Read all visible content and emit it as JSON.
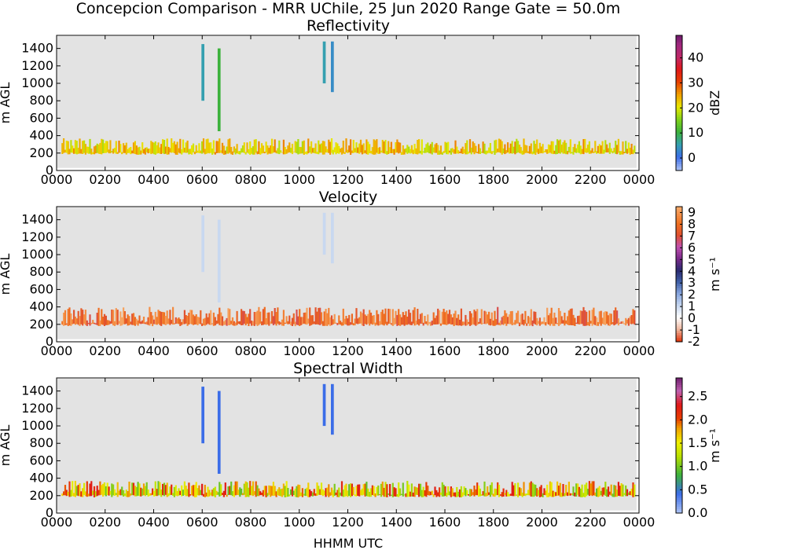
{
  "figure": {
    "suptitle": "Concepcion Comparison - MRR UChile, 25 Jun 2020 Range Gate = 50.0m",
    "xlabel": "HHMM UTC"
  },
  "chart_data": [
    {
      "type": "heatmap",
      "title": "Reflectivity",
      "xlabel": "",
      "ylabel": "m AGL",
      "x_ticks": [
        "0000",
        "0200",
        "0400",
        "0600",
        "0800",
        "1000",
        "1200",
        "1400",
        "1600",
        "1800",
        "2000",
        "2200",
        "0000"
      ],
      "y_ticks": [
        0,
        200,
        400,
        600,
        800,
        1000,
        1200,
        1400
      ],
      "ylim": [
        0,
        1550
      ],
      "colorbar": {
        "label": "dBZ",
        "range": [
          -5,
          49
        ],
        "ticks": [
          "0",
          "10",
          "20",
          "30",
          "40"
        ],
        "tick_values": [
          0,
          10,
          20,
          30,
          40
        ]
      },
      "features": [
        {
          "desc": "persistent low-level echo band",
          "height_m": [
            150,
            350
          ],
          "value": 22
        },
        {
          "desc": "fall streak",
          "time_hhmm": "0600",
          "height_m": [
            800,
            1450
          ],
          "value": 5
        },
        {
          "desc": "fall streak",
          "time_hhmm": "0640",
          "height_m": [
            450,
            1400
          ],
          "value": 10
        },
        {
          "desc": "fall streak",
          "time_hhmm": "1100",
          "height_m": [
            1000,
            1480
          ],
          "value": 5
        },
        {
          "desc": "fall streak",
          "time_hhmm": "1120",
          "height_m": [
            900,
            1480
          ],
          "value": 3
        }
      ]
    },
    {
      "type": "heatmap",
      "title": "Velocity",
      "xlabel": "",
      "ylabel": "m AGL",
      "x_ticks": [
        "0000",
        "0200",
        "0400",
        "0600",
        "0800",
        "1000",
        "1200",
        "1400",
        "1600",
        "1800",
        "2000",
        "2200",
        "0000"
      ],
      "y_ticks": [
        0,
        200,
        400,
        600,
        800,
        1000,
        1200,
        1400
      ],
      "ylim": [
        0,
        1550
      ],
      "colorbar": {
        "label": "m s⁻¹",
        "range": [
          -2,
          9.5
        ],
        "ticks": [
          "-2",
          "-1",
          "0",
          "1",
          "2",
          "3",
          "4",
          "5",
          "6",
          "7",
          "8",
          "9"
        ],
        "tick_values": [
          -2,
          -1,
          0,
          1,
          2,
          3,
          4,
          5,
          6,
          7,
          8,
          9
        ]
      },
      "features": [
        {
          "desc": "persistent low-level echo band",
          "height_m": [
            150,
            380
          ],
          "value": 8
        },
        {
          "desc": "fall streak",
          "time_hhmm": "0600",
          "height_m": [
            800,
            1450
          ],
          "value": 1
        },
        {
          "desc": "fall streak",
          "time_hhmm": "0640",
          "height_m": [
            450,
            1400
          ],
          "value": 1
        },
        {
          "desc": "fall streak",
          "time_hhmm": "1100",
          "height_m": [
            1000,
            1480
          ],
          "value": 1
        },
        {
          "desc": "fall streak",
          "time_hhmm": "1120",
          "height_m": [
            900,
            1480
          ],
          "value": 1
        }
      ]
    },
    {
      "type": "heatmap",
      "title": "Spectral Width",
      "xlabel": "HHMM UTC",
      "ylabel": "m AGL",
      "x_ticks": [
        "0000",
        "0200",
        "0400",
        "0600",
        "0800",
        "1000",
        "1200",
        "1400",
        "1600",
        "1800",
        "2000",
        "2200",
        "0000"
      ],
      "y_ticks": [
        0,
        200,
        400,
        600,
        800,
        1000,
        1200,
        1400
      ],
      "ylim": [
        0,
        1550
      ],
      "colorbar": {
        "label": "m s⁻¹",
        "range": [
          0,
          2.9
        ],
        "ticks": [
          "0.0",
          "0.5",
          "1.0",
          "1.5",
          "2.0",
          "2.5"
        ],
        "tick_values": [
          0,
          0.5,
          1.0,
          1.5,
          2.0,
          2.5
        ]
      },
      "features": [
        {
          "desc": "persistent low-level echo band",
          "height_m": [
            150,
            350
          ],
          "value": 1.6
        },
        {
          "desc": "fall streak",
          "time_hhmm": "0600",
          "height_m": [
            800,
            1450
          ],
          "value": 0.4
        },
        {
          "desc": "fall streak",
          "time_hhmm": "0640",
          "height_m": [
            450,
            1400
          ],
          "value": 0.4
        },
        {
          "desc": "fall streak",
          "time_hhmm": "1100",
          "height_m": [
            1000,
            1480
          ],
          "value": 0.4
        },
        {
          "desc": "fall streak",
          "time_hhmm": "1120",
          "height_m": [
            900,
            1480
          ],
          "value": 0.4
        }
      ]
    }
  ]
}
